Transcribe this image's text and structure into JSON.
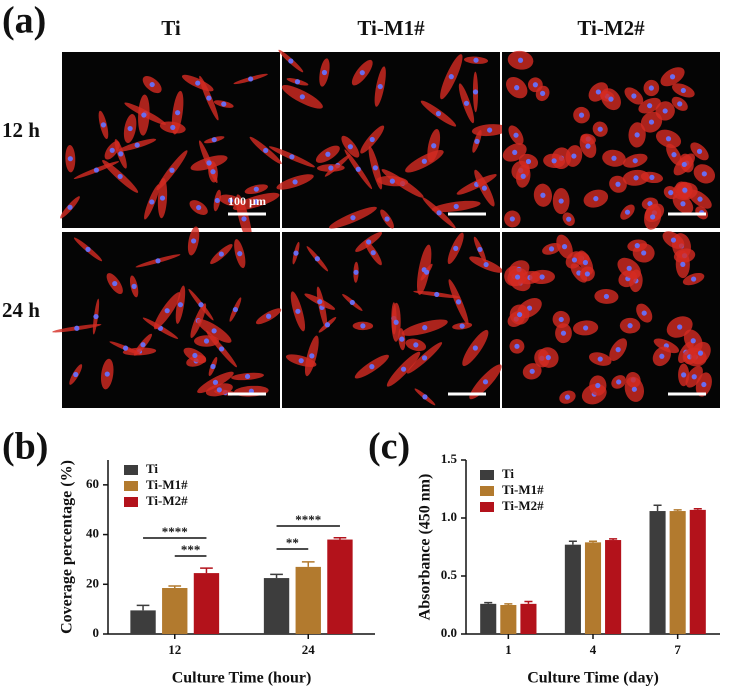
{
  "panel_labels": [
    "(a)",
    "(b)",
    "(c)"
  ],
  "images": {
    "columns": [
      "Ti",
      "Ti-M1#",
      "Ti-M2#"
    ],
    "rows": [
      "12 h",
      "24 h"
    ],
    "scale_bar": "100 µm"
  },
  "chart_data": [
    {
      "type": "bar",
      "x_label": "Culture Time (hour)",
      "y_label": "Coverage percentage (%)",
      "categories": [
        "12",
        "24"
      ],
      "series": [
        {
          "name": "Ti",
          "color": "#3d3d3d",
          "values": [
            9.5,
            22.5
          ],
          "errors": [
            2,
            1.5
          ]
        },
        {
          "name": "Ti-M1#",
          "color": "#b27a2e",
          "values": [
            18.5,
            27
          ],
          "errors": [
            0.8,
            2
          ]
        },
        {
          "name": "Ti-M2#",
          "color": "#b3121b",
          "values": [
            24.5,
            38
          ],
          "errors": [
            2,
            0.7
          ]
        }
      ],
      "ylim": [
        0,
        70
      ],
      "yticks": [
        0,
        20,
        40,
        60
      ],
      "annotations": [
        "****",
        "***",
        "**",
        "****"
      ]
    },
    {
      "type": "bar",
      "x_label": "Culture Time (day)",
      "y_label": "Absorbance (450 nm)",
      "categories": [
        "1",
        "4",
        "7"
      ],
      "series": [
        {
          "name": "Ti",
          "color": "#3d3d3d",
          "values": [
            0.26,
            0.77,
            1.06
          ],
          "errors": [
            0.01,
            0.03,
            0.05
          ]
        },
        {
          "name": "Ti-M1#",
          "color": "#b27a2e",
          "values": [
            0.25,
            0.79,
            1.06
          ],
          "errors": [
            0.01,
            0.01,
            0.01
          ]
        },
        {
          "name": "Ti-M2#",
          "color": "#b3121b",
          "values": [
            0.26,
            0.81,
            1.07
          ],
          "errors": [
            0.02,
            0.01,
            0.01
          ]
        }
      ],
      "ylim": [
        0,
        1.5
      ],
      "yticks": [
        {
          "value": 0,
          "label": "0.0"
        },
        {
          "value": 0.5,
          "label": "0.5"
        },
        {
          "value": 1,
          "label": "1.0"
        },
        1.5
      ]
    }
  ]
}
